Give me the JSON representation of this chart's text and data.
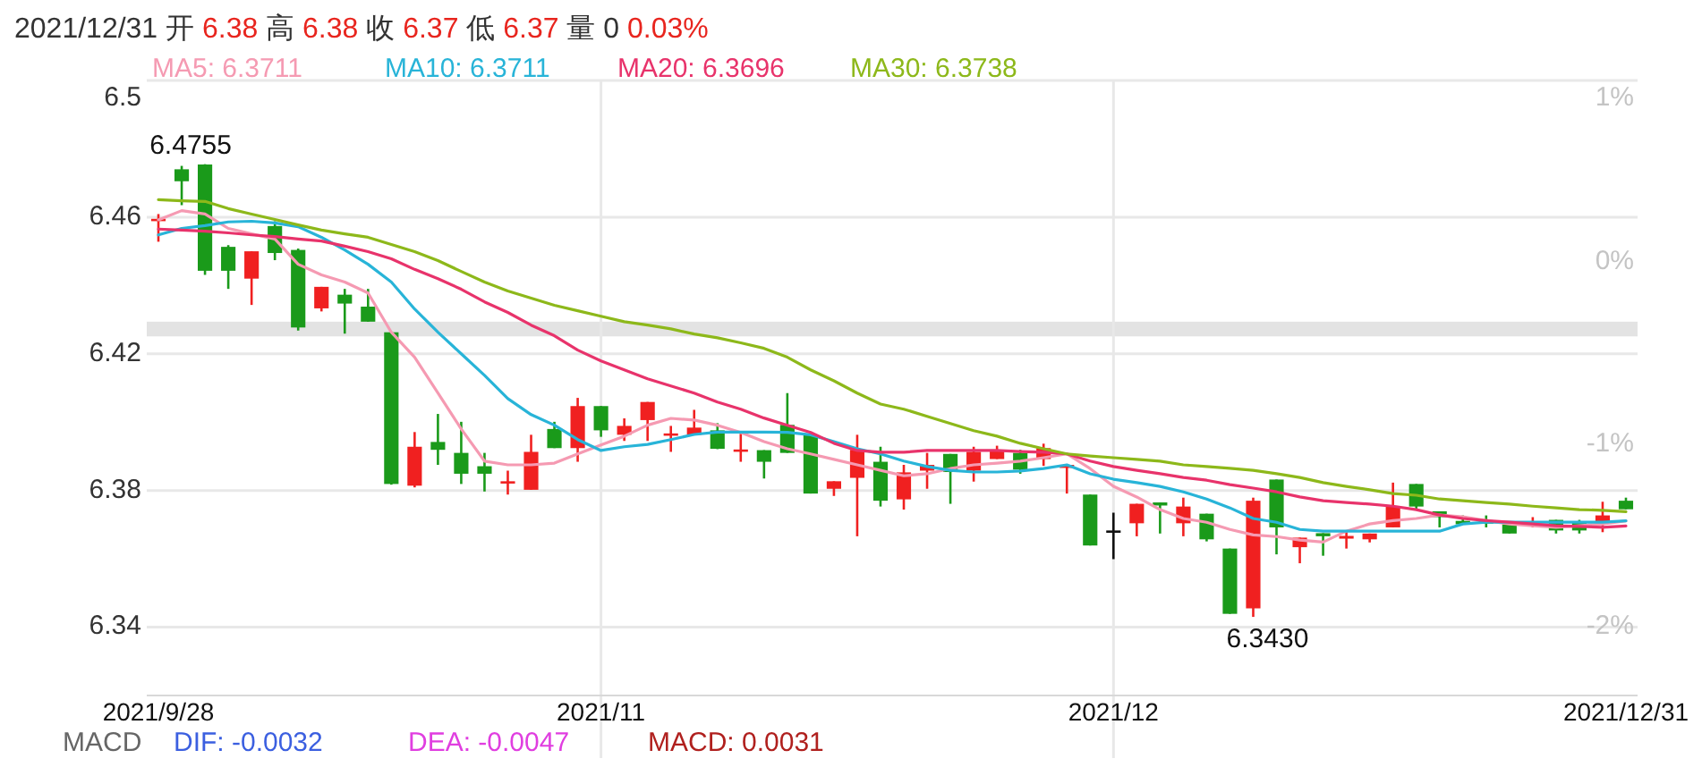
{
  "chart_data": {
    "type": "candlestick",
    "categories": [
      "2021/9/28",
      null,
      null,
      null,
      null,
      null,
      null,
      null,
      null,
      null,
      null,
      null,
      null,
      null,
      null,
      null,
      null,
      null,
      null,
      "2021/11",
      null,
      null,
      null,
      null,
      null,
      null,
      null,
      null,
      null,
      null,
      null,
      null,
      null,
      null,
      null,
      null,
      null,
      null,
      null,
      null,
      null,
      "2021/12",
      null,
      null,
      null,
      null,
      null,
      null,
      null,
      null,
      null,
      null,
      null,
      null,
      null,
      null,
      null,
      null,
      null,
      null,
      null,
      null,
      null,
      "2021/12/31"
    ],
    "ohlc": [
      [
        6.459,
        6.4609,
        6.4528,
        6.4595
      ],
      [
        6.474,
        6.475,
        6.4635,
        6.4705
      ],
      [
        6.4754,
        6.4755,
        6.4431,
        6.4443
      ],
      [
        6.4513,
        6.4518,
        6.439,
        6.4443
      ],
      [
        6.442,
        6.45,
        6.4343,
        6.45
      ],
      [
        6.4574,
        6.4588,
        6.4474,
        6.4495
      ],
      [
        6.4504,
        6.4508,
        6.4268,
        6.4277
      ],
      [
        6.4333,
        6.4396,
        6.4324,
        6.4396
      ],
      [
        6.4373,
        6.439,
        6.4259,
        6.4347
      ],
      [
        6.4338,
        6.439,
        6.4294,
        6.4294
      ],
      [
        6.4263,
        6.4263,
        6.3817,
        6.3819
      ],
      [
        6.3814,
        6.3971,
        6.3809,
        6.3928
      ],
      [
        6.3942,
        6.4024,
        6.3875,
        6.3919
      ],
      [
        6.391,
        6.4001,
        6.3819,
        6.3849
      ],
      [
        6.3871,
        6.391,
        6.3797,
        6.3849
      ],
      [
        6.3825,
        6.3858,
        6.3788,
        6.3827
      ],
      [
        6.3802,
        6.3963,
        6.3802,
        6.3913
      ],
      [
        6.398,
        6.4001,
        6.3924,
        6.3924
      ],
      [
        6.3924,
        6.4071,
        6.3884,
        6.4047
      ],
      [
        6.4047,
        6.4047,
        6.3957,
        6.3976
      ],
      [
        6.3963,
        6.4011,
        6.3945,
        6.3989
      ],
      [
        6.4006,
        6.4059,
        6.3945,
        6.4059
      ],
      [
        6.3965,
        6.3989,
        6.3913,
        6.3967
      ],
      [
        6.3963,
        6.4036,
        6.3963,
        6.3984
      ],
      [
        6.3976,
        6.3997,
        6.3921,
        6.3922
      ],
      [
        6.3918,
        6.3966,
        6.3884,
        6.392
      ],
      [
        6.3918,
        6.3918,
        6.3835,
        6.3884
      ],
      [
        6.3992,
        6.4085,
        6.391,
        6.391
      ],
      [
        6.3963,
        6.3964,
        6.3791,
        6.3791
      ],
      [
        6.3805,
        6.3827,
        6.3784,
        6.3827
      ],
      [
        6.3837,
        6.3963,
        6.3666,
        6.3919
      ],
      [
        6.3884,
        6.3928,
        6.3753,
        6.377
      ],
      [
        6.3774,
        6.3875,
        6.3744,
        6.3853
      ],
      [
        6.3858,
        6.391,
        6.3805,
        6.3875
      ],
      [
        6.3907,
        6.3907,
        6.3761,
        6.3854
      ],
      [
        6.3858,
        6.3928,
        6.3826,
        6.3913
      ],
      [
        6.3892,
        6.3931,
        6.3892,
        6.3919
      ],
      [
        6.391,
        6.3919,
        6.3849,
        6.3861
      ],
      [
        6.3892,
        6.3937,
        6.3872,
        6.3924
      ],
      [
        6.3866,
        6.3875,
        6.3791,
        6.3875
      ],
      [
        6.3788,
        6.3788,
        6.3639,
        6.3639
      ],
      [
        6.3683,
        6.3735,
        6.3599,
        6.3683
      ],
      [
        6.3704,
        6.3761,
        6.3666,
        6.3761
      ],
      [
        6.3765,
        6.3765,
        6.3674,
        6.3756
      ],
      [
        6.3704,
        6.3779,
        6.3666,
        6.3753
      ],
      [
        6.3732,
        6.3732,
        6.3651,
        6.3657
      ],
      [
        6.363,
        6.363,
        6.3439,
        6.3439
      ],
      [
        6.3455,
        6.3779,
        6.343,
        6.377
      ],
      [
        6.3832,
        6.3832,
        6.3613,
        6.3692
      ],
      [
        6.3634,
        6.3662,
        6.3587,
        6.3662
      ],
      [
        6.3675,
        6.3675,
        6.3609,
        6.3666
      ],
      [
        6.3659,
        6.3683,
        6.363,
        6.3667
      ],
      [
        6.3657,
        6.3674,
        6.3648,
        6.3674
      ],
      [
        6.3692,
        6.3823,
        6.3692,
        6.3753
      ],
      [
        6.3819,
        6.3819,
        6.3743,
        6.3753
      ],
      [
        6.3739,
        6.3739,
        6.3692,
        6.3722
      ],
      [
        6.3711,
        6.3727,
        6.3701,
        6.3701
      ],
      [
        6.3711,
        6.3727,
        6.3692,
        6.3703
      ],
      [
        6.3701,
        6.3701,
        6.3674,
        6.3674
      ],
      [
        6.37,
        6.3722,
        6.3692,
        6.3702
      ],
      [
        6.3714,
        6.3714,
        6.3674,
        6.3683
      ],
      [
        6.3709,
        6.3714,
        6.3674,
        6.3683
      ],
      [
        6.3704,
        6.3767,
        6.3678,
        6.3727
      ],
      [
        6.377,
        6.3779,
        6.3745,
        6.3745
      ]
    ],
    "colors": [
      "#f02020",
      "#1a9a1a",
      "#1a9a1a",
      "#1a9a1a",
      "#f02020",
      "#1a9a1a",
      "#1a9a1a",
      "#f02020",
      "#1a9a1a",
      "#1a9a1a",
      "#1a9a1a",
      "#f02020",
      "#1a9a1a",
      "#1a9a1a",
      "#1a9a1a",
      "#f02020",
      "#f02020",
      "#1a9a1a",
      "#f02020",
      "#1a9a1a",
      "#f02020",
      "#f02020",
      "#f02020",
      "#f02020",
      "#1a9a1a",
      "#f02020",
      "#1a9a1a",
      "#1a9a1a",
      "#1a9a1a",
      "#f02020",
      "#f02020",
      "#1a9a1a",
      "#f02020",
      "#f02020",
      "#1a9a1a",
      "#f02020",
      "#f02020",
      "#1a9a1a",
      "#f02020",
      "#f02020",
      "#1a9a1a",
      "#111111",
      "#f02020",
      "#1a9a1a",
      "#f02020",
      "#1a9a1a",
      "#1a9a1a",
      "#f02020",
      "#1a9a1a",
      "#f02020",
      "#1a9a1a",
      "#f02020",
      "#f02020",
      "#f02020",
      "#1a9a1a",
      "#1a9a1a",
      "#1a9a1a",
      "#1a9a1a",
      "#1a9a1a",
      "#f02020",
      "#1a9a1a",
      "#1a9a1a",
      "#f02020",
      "#1a9a1a"
    ],
    "series": [
      {
        "name": "MA5: 6.3711",
        "type": "line",
        "color": "#f59ab2",
        "values": [
          6.4592,
          6.4619,
          6.4609,
          6.4567,
          6.4551,
          6.4536,
          6.4462,
          6.4431,
          6.441,
          6.4378,
          6.4263,
          6.419,
          6.4085,
          6.398,
          6.3886,
          6.3875,
          6.3875,
          6.388,
          6.3907,
          6.3933,
          6.3959,
          6.3991,
          6.4011,
          6.4006,
          6.3991,
          6.397,
          6.3943,
          6.3922,
          6.3907,
          6.3891,
          6.3875,
          6.3859,
          6.3843,
          6.3849,
          6.3864,
          6.3875,
          6.388,
          6.3886,
          6.3896,
          6.3907,
          6.3864,
          6.3812,
          6.3781,
          6.3744,
          6.3718,
          6.3707,
          6.3686,
          6.367,
          6.3665,
          6.3655,
          6.3649,
          6.3681,
          6.3702,
          6.3712,
          6.3718,
          6.3728,
          6.3723,
          6.3712,
          6.3702,
          6.3697,
          6.3692,
          6.3697,
          6.3702,
          6.3711
        ]
      },
      {
        "name": "MA10: 6.3711",
        "type": "line",
        "color": "#28b4d8",
        "values": [
          6.4548,
          6.4567,
          6.4575,
          6.4586,
          6.4588,
          6.4583,
          6.4572,
          6.4541,
          6.4504,
          6.4462,
          6.441,
          6.4331,
          6.4263,
          6.42,
          6.4137,
          6.4069,
          6.4022,
          6.3991,
          6.3949,
          6.3917,
          6.3928,
          6.3935,
          6.3949,
          6.3964,
          6.3971,
          6.3971,
          6.3971,
          6.397,
          6.3963,
          6.3943,
          6.3922,
          6.3907,
          6.3886,
          6.387,
          6.3859,
          6.3854,
          6.3854,
          6.3857,
          6.3864,
          6.3875,
          6.3849,
          6.3833,
          6.3823,
          6.3812,
          6.3796,
          6.3775,
          6.3749,
          6.3718,
          6.3707,
          6.3686,
          6.3681,
          6.3681,
          6.3681,
          6.3681,
          6.3681,
          6.3681,
          6.3702,
          6.3707,
          6.3707,
          6.3707,
          6.3707,
          6.3707,
          6.3707,
          6.3711
        ]
      },
      {
        "name": "MA20: 6.3696",
        "type": "line",
        "color": "#e8336b",
        "values": [
          6.4565,
          6.4562,
          6.4559,
          6.4554,
          6.4548,
          6.4543,
          6.4536,
          6.453,
          6.4515,
          6.4499,
          6.4478,
          6.4447,
          6.442,
          6.4389,
          6.4352,
          6.4321,
          6.4284,
          6.4253,
          6.4211,
          6.4179,
          6.4153,
          6.4127,
          6.4106,
          6.4085,
          6.4059,
          6.4038,
          6.4012,
          6.3991,
          6.397,
          6.3938,
          6.3917,
          6.3912,
          6.3912,
          6.3917,
          6.3917,
          6.3917,
          6.3917,
          6.3914,
          6.3912,
          6.3907,
          6.3886,
          6.387,
          6.3859,
          6.3849,
          6.3838,
          6.383,
          6.3817,
          6.3807,
          6.3796,
          6.3781,
          6.377,
          6.3765,
          6.376,
          6.3754,
          6.3744,
          6.3728,
          6.3718,
          6.3712,
          6.3707,
          6.3702,
          6.3697,
          6.3695,
          6.3692,
          6.3696
        ]
      },
      {
        "name": "MA30: 6.3738",
        "type": "line",
        "color": "#8db81a",
        "values": [
          6.4651,
          6.4648,
          6.4646,
          6.4625,
          6.4609,
          6.4593,
          6.4577,
          6.4562,
          6.4551,
          6.4541,
          6.452,
          6.4499,
          6.4473,
          6.4441,
          6.441,
          6.4384,
          6.4363,
          6.4342,
          6.4326,
          6.431,
          6.4294,
          6.4284,
          6.4273,
          6.4258,
          6.4247,
          6.4232,
          6.4216,
          6.419,
          6.4153,
          6.4121,
          6.4085,
          6.4053,
          6.4038,
          6.4017,
          6.3996,
          6.3975,
          6.3959,
          6.3938,
          6.3922,
          6.3907,
          6.3901,
          6.3896,
          6.3891,
          6.3886,
          6.3875,
          6.387,
          6.3865,
          6.3859,
          6.3849,
          6.3838,
          6.3823,
          6.3812,
          6.3802,
          6.3791,
          6.3786,
          6.3775,
          6.377,
          6.3765,
          6.376,
          6.3754,
          6.3749,
          6.3744,
          6.3742,
          6.3738
        ]
      }
    ],
    "ylim": [
      6.32,
      6.5
    ],
    "yticks": [
      6.34,
      6.38,
      6.42,
      6.46,
      6.5
    ],
    "y2lim": [
      -2.38,
      1
    ],
    "y2ticks": [
      {
        "value": -2,
        "label": "-2%"
      },
      {
        "value": -1,
        "label": "-1%"
      },
      {
        "value": 0,
        "label": "0%"
      },
      {
        "value": 1,
        "label": "1%"
      }
    ],
    "bands": [
      {
        "axis": "y",
        "from": 6.4251,
        "to": 6.4294,
        "color": "#e3e3e3"
      }
    ],
    "grid": true,
    "legend": "top",
    "annotations": [
      "2021/12/31 开 6.38 高 6.38 收 6.37 低 6.37 量 0 0.03%",
      "6.4755",
      "6.3430",
      "MACD",
      "DIF: -0.0032",
      "DEA: -0.0047",
      "MACD: 0.0031"
    ]
  }
}
